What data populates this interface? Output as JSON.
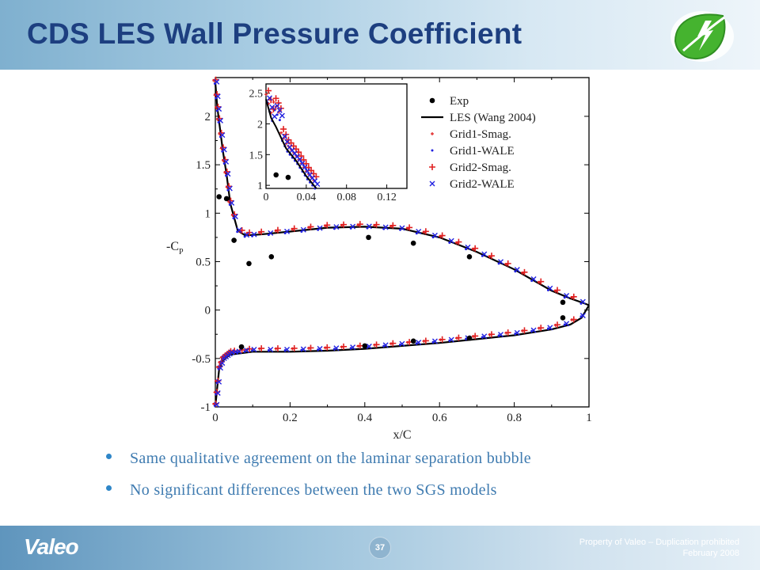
{
  "slide": {
    "title": "CDS LES Wall Pressure Coefficient",
    "bullets": [
      "Same qualitative agreement on the laminar separation bubble",
      "No significant differences between the two SGS models"
    ],
    "footer": {
      "brand": "Valeo",
      "page_number": "37",
      "notice": "Property of Valeo – Duplication prohibited",
      "date": "February 2008"
    }
  },
  "chart_data": [
    {
      "type": "line",
      "title": "",
      "xlabel": "x/C",
      "ylabel": "-C",
      "ylabel_subscript": "P",
      "xlim": [
        0,
        1
      ],
      "ylim": [
        -1,
        2.4
      ],
      "xticks": [
        "0",
        "0.2",
        "0.4",
        "0.6",
        "0.8",
        "1"
      ],
      "yticks": [
        "-1",
        "-0.5",
        "0",
        "0.5",
        "1",
        "1.5",
        "2"
      ],
      "legend": [
        "Exp",
        "LES (Wang 2004)",
        "Grid1-Smag.",
        "Grid1-WALE",
        "Grid2-Smag.",
        "Grid2-WALE"
      ],
      "legend_position": "top-right",
      "series": [
        {
          "name": "Exp",
          "marker": "circle",
          "color": "#000000",
          "x": [
            0.01,
            0.03,
            0.05,
            0.09,
            0.15,
            0.41,
            0.53,
            0.68,
            0.93,
            0.07,
            0.4,
            0.53,
            0.68,
            0.93
          ],
          "y": [
            1.17,
            1.15,
            0.72,
            0.48,
            0.55,
            0.75,
            0.69,
            0.55,
            0.08,
            -0.38,
            -0.37,
            -0.32,
            -0.29,
            -0.08
          ]
        },
        {
          "name": "LES (Wang 2004)",
          "color": "#000000",
          "upper": {
            "x": [
              0.0,
              0.005,
              0.01,
              0.02,
              0.03,
              0.04,
              0.06,
              0.08,
              0.12,
              0.2,
              0.3,
              0.4,
              0.5,
              0.6,
              0.7,
              0.8,
              0.9,
              0.95,
              0.98,
              1.0
            ],
            "y": [
              2.35,
              2.1,
              1.95,
              1.65,
              1.4,
              1.1,
              0.82,
              0.77,
              0.78,
              0.81,
              0.85,
              0.86,
              0.84,
              0.75,
              0.6,
              0.42,
              0.2,
              0.12,
              0.08,
              0.05
            ]
          },
          "lower": {
            "x": [
              0.0,
              0.005,
              0.01,
              0.02,
              0.04,
              0.1,
              0.2,
              0.3,
              0.4,
              0.5,
              0.6,
              0.7,
              0.8,
              0.9,
              0.95,
              0.98,
              1.0
            ],
            "y": [
              -1.0,
              -0.8,
              -0.62,
              -0.52,
              -0.46,
              -0.43,
              -0.43,
              -0.42,
              -0.4,
              -0.37,
              -0.34,
              -0.3,
              -0.26,
              -0.2,
              -0.15,
              -0.08,
              0.05
            ]
          }
        },
        {
          "name": "Grid1-Smag.",
          "marker": "small-plus",
          "color": "#e02020"
        },
        {
          "name": "Grid1-WALE",
          "marker": "small-dot",
          "color": "#2020e0"
        },
        {
          "name": "Grid2-Smag.",
          "marker": "plus",
          "color": "#e02020"
        },
        {
          "name": "Grid2-WALE",
          "marker": "cross",
          "color": "#2020e0"
        }
      ]
    },
    {
      "type": "line",
      "title": "",
      "xlim": [
        0,
        0.14
      ],
      "ylim": [
        0.95,
        2.65
      ],
      "xticks": [
        "0",
        "0.04",
        "0.08",
        "0.12"
      ],
      "yticks": [
        "1",
        "1.5",
        "2",
        "2.5"
      ],
      "series": [
        {
          "name": "Exp",
          "marker": "circle",
          "color": "#000000",
          "x": [
            0.01,
            0.022
          ],
          "y": [
            1.17,
            1.13
          ]
        },
        {
          "name": "LES (Wang 2004)",
          "color": "#000000",
          "x": [
            0.0,
            0.005,
            0.01,
            0.02,
            0.03,
            0.04,
            0.05
          ],
          "y": [
            2.4,
            2.1,
            1.95,
            1.6,
            1.4,
            1.15,
            0.95
          ]
        }
      ]
    }
  ]
}
